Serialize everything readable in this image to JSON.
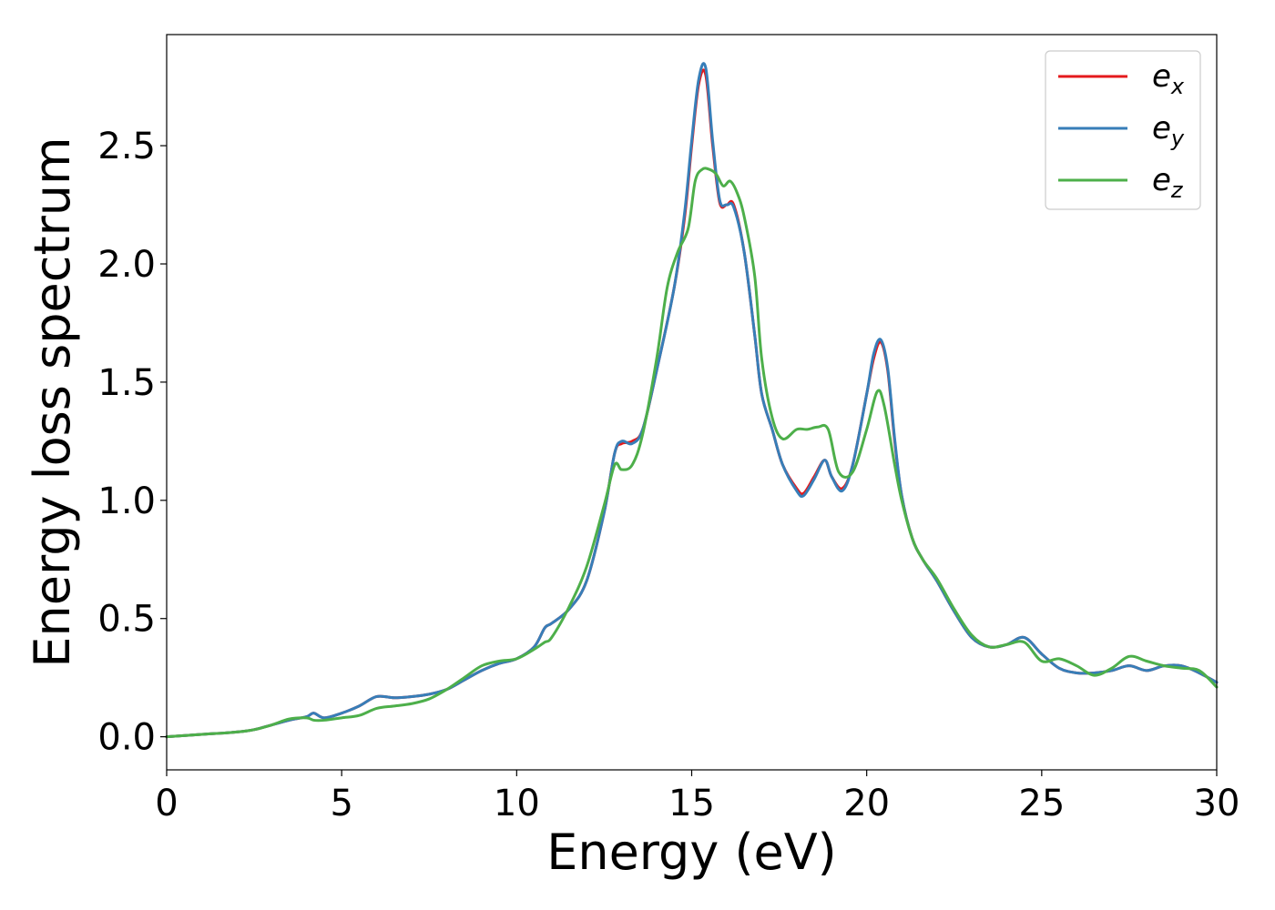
{
  "chart_data": {
    "type": "line",
    "xlabel": "Energy (eV)",
    "ylabel": "Energy loss spectrum",
    "xlim": [
      0,
      30
    ],
    "ylim": [
      -0.14,
      2.97
    ],
    "xticks": [
      "0",
      "5",
      "10",
      "15",
      "20",
      "25",
      "30"
    ],
    "yticks": [
      "0.0",
      "0.5",
      "1.0",
      "1.5",
      "2.0",
      "2.5"
    ],
    "xtick_values": [
      0,
      5,
      10,
      15,
      20,
      25,
      30
    ],
    "ytick_values": [
      0.0,
      0.5,
      1.0,
      1.5,
      2.0,
      2.5
    ],
    "grid": false,
    "legend_position": "top-right",
    "series": [
      {
        "name": "e",
        "subscript": "x",
        "color": "#e41a1c",
        "x": [
          0,
          1,
          2,
          2.5,
          3,
          3.5,
          4,
          4.2,
          4.5,
          5,
          5.5,
          6,
          6.5,
          7,
          7.5,
          8,
          8.5,
          9,
          9.5,
          10,
          10.5,
          10.8,
          11,
          11.5,
          12,
          12.5,
          12.8,
          13,
          13.3,
          13.6,
          14,
          14.5,
          14.8,
          15,
          15.2,
          15.4,
          15.6,
          15.8,
          16,
          16.2,
          16.5,
          16.8,
          17,
          17.3,
          17.6,
          18,
          18.2,
          18.5,
          18.8,
          19,
          19.3,
          19.6,
          20,
          20.2,
          20.4,
          20.6,
          20.8,
          21,
          21.3,
          21.6,
          22,
          22.5,
          23,
          23.5,
          24,
          24.5,
          25,
          25.5,
          26,
          26.5,
          27,
          27.5,
          28,
          28.5,
          29,
          29.5,
          30
        ],
        "y": [
          0.0,
          0.01,
          0.02,
          0.03,
          0.05,
          0.07,
          0.085,
          0.1,
          0.08,
          0.1,
          0.13,
          0.17,
          0.165,
          0.17,
          0.18,
          0.2,
          0.24,
          0.28,
          0.31,
          0.33,
          0.38,
          0.46,
          0.48,
          0.54,
          0.66,
          0.95,
          1.2,
          1.24,
          1.25,
          1.3,
          1.55,
          1.9,
          2.2,
          2.5,
          2.76,
          2.8,
          2.5,
          2.26,
          2.25,
          2.25,
          2.05,
          1.7,
          1.45,
          1.3,
          1.15,
          1.05,
          1.03,
          1.1,
          1.17,
          1.1,
          1.05,
          1.15,
          1.45,
          1.6,
          1.67,
          1.55,
          1.25,
          1.02,
          0.84,
          0.75,
          0.66,
          0.53,
          0.42,
          0.38,
          0.39,
          0.42,
          0.35,
          0.29,
          0.27,
          0.27,
          0.28,
          0.3,
          0.28,
          0.3,
          0.3,
          0.27,
          0.23
        ]
      },
      {
        "name": "e",
        "subscript": "y",
        "color": "#377eb8",
        "x": [
          0,
          1,
          2,
          2.5,
          3,
          3.5,
          4,
          4.2,
          4.5,
          5,
          5.5,
          6,
          6.5,
          7,
          7.5,
          8,
          8.5,
          9,
          9.5,
          10,
          10.5,
          10.8,
          11,
          11.5,
          12,
          12.5,
          12.8,
          13,
          13.3,
          13.6,
          14,
          14.5,
          14.8,
          15,
          15.2,
          15.4,
          15.6,
          15.8,
          16,
          16.2,
          16.5,
          16.8,
          17,
          17.3,
          17.6,
          18,
          18.2,
          18.5,
          18.8,
          19,
          19.3,
          19.6,
          20,
          20.2,
          20.4,
          20.6,
          20.8,
          21,
          21.3,
          21.6,
          22,
          22.5,
          23,
          23.5,
          24,
          24.5,
          25,
          25.5,
          26,
          26.5,
          27,
          27.5,
          28,
          28.5,
          29,
          29.5,
          30
        ],
        "y": [
          0.0,
          0.01,
          0.02,
          0.03,
          0.05,
          0.07,
          0.085,
          0.1,
          0.08,
          0.1,
          0.13,
          0.17,
          0.165,
          0.17,
          0.18,
          0.2,
          0.24,
          0.28,
          0.31,
          0.33,
          0.38,
          0.46,
          0.48,
          0.54,
          0.66,
          0.95,
          1.2,
          1.25,
          1.24,
          1.3,
          1.55,
          1.9,
          2.22,
          2.52,
          2.78,
          2.83,
          2.52,
          2.27,
          2.25,
          2.24,
          2.05,
          1.7,
          1.45,
          1.3,
          1.15,
          1.04,
          1.02,
          1.09,
          1.17,
          1.1,
          1.04,
          1.15,
          1.45,
          1.62,
          1.68,
          1.56,
          1.26,
          1.02,
          0.84,
          0.75,
          0.66,
          0.53,
          0.42,
          0.38,
          0.39,
          0.42,
          0.35,
          0.29,
          0.27,
          0.27,
          0.28,
          0.3,
          0.28,
          0.3,
          0.3,
          0.27,
          0.23
        ]
      },
      {
        "name": "e",
        "subscript": "z",
        "color": "#4daf4a",
        "x": [
          0,
          1,
          2,
          2.5,
          3,
          3.5,
          4,
          4.2,
          4.5,
          5,
          5.5,
          6,
          6.5,
          7,
          7.5,
          8,
          8.5,
          9,
          9.5,
          10,
          10.5,
          10.8,
          11,
          11.5,
          12,
          12.5,
          12.8,
          13,
          13.3,
          13.6,
          14,
          14.3,
          14.6,
          14.9,
          15.1,
          15.3,
          15.5,
          15.7,
          15.9,
          16.1,
          16.3,
          16.5,
          16.8,
          17,
          17.3,
          17.6,
          18,
          18.3,
          18.6,
          18.9,
          19.2,
          19.6,
          20,
          20.3,
          20.5,
          20.8,
          21,
          21.3,
          21.6,
          22,
          22.5,
          23,
          23.5,
          24,
          24.5,
          25,
          25.5,
          26,
          26.5,
          27,
          27.5,
          28,
          28.5,
          29,
          29.5,
          30
        ],
        "y": [
          0.0,
          0.01,
          0.02,
          0.03,
          0.05,
          0.075,
          0.08,
          0.07,
          0.07,
          0.08,
          0.09,
          0.12,
          0.13,
          0.14,
          0.16,
          0.2,
          0.25,
          0.3,
          0.32,
          0.33,
          0.37,
          0.4,
          0.42,
          0.55,
          0.72,
          0.98,
          1.15,
          1.13,
          1.15,
          1.28,
          1.6,
          1.9,
          2.05,
          2.15,
          2.35,
          2.4,
          2.4,
          2.38,
          2.33,
          2.35,
          2.3,
          2.2,
          1.95,
          1.6,
          1.35,
          1.26,
          1.3,
          1.3,
          1.31,
          1.3,
          1.12,
          1.12,
          1.3,
          1.46,
          1.4,
          1.15,
          1.0,
          0.84,
          0.75,
          0.67,
          0.54,
          0.43,
          0.38,
          0.39,
          0.4,
          0.32,
          0.33,
          0.3,
          0.26,
          0.29,
          0.34,
          0.32,
          0.3,
          0.29,
          0.28,
          0.21
        ]
      }
    ]
  }
}
